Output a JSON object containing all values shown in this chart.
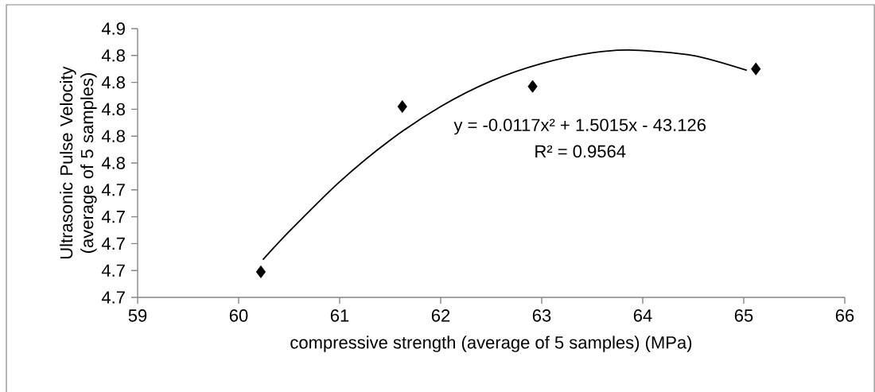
{
  "chart_data": {
    "type": "scatter",
    "xlabel": "compressive strength (average of 5 samples) (MPa)",
    "ylabel": "Ultrasonic Pulse Velocity (average of 5 samples)",
    "xlim": [
      59,
      66
    ],
    "xticks": [
      59,
      60,
      61,
      62,
      63,
      64,
      65,
      66
    ],
    "ylim": [
      4.65,
      4.85
    ],
    "yticks": [
      {
        "value": 4.65,
        "label": "4.7"
      },
      {
        "value": 4.67,
        "label": "4.7"
      },
      {
        "value": 4.69,
        "label": "4.7"
      },
      {
        "value": 4.71,
        "label": "4.7"
      },
      {
        "value": 4.73,
        "label": "4.7"
      },
      {
        "value": 4.75,
        "label": "4.8"
      },
      {
        "value": 4.77,
        "label": "4.8"
      },
      {
        "value": 4.79,
        "label": "4.8"
      },
      {
        "value": 4.81,
        "label": "4.8"
      },
      {
        "value": 4.83,
        "label": "4.8"
      },
      {
        "value": 4.85,
        "label": "4.9"
      }
    ],
    "marker": "diamond",
    "series": [
      {
        "color": "#000000",
        "x": [
          60.22,
          61.62,
          62.91,
          65.12
        ],
        "values": [
          4.669,
          4.792,
          4.807,
          4.82
        ]
      },
      {
        "type": "line",
        "color": "#000000",
        "marker": "none",
        "x": [
          60.24,
          60.5,
          61,
          61.5,
          62,
          62.5,
          63,
          63.5,
          63.91,
          64.5,
          65.03
        ],
        "values": [
          4.678,
          4.699,
          4.736,
          4.767,
          4.792,
          4.811,
          4.824,
          4.832,
          4.834,
          4.83,
          4.819
        ]
      }
    ],
    "annotations": [
      "y = -0.0117x² + 1.5015x - 43.126",
      "R² = 0.9564"
    ]
  }
}
